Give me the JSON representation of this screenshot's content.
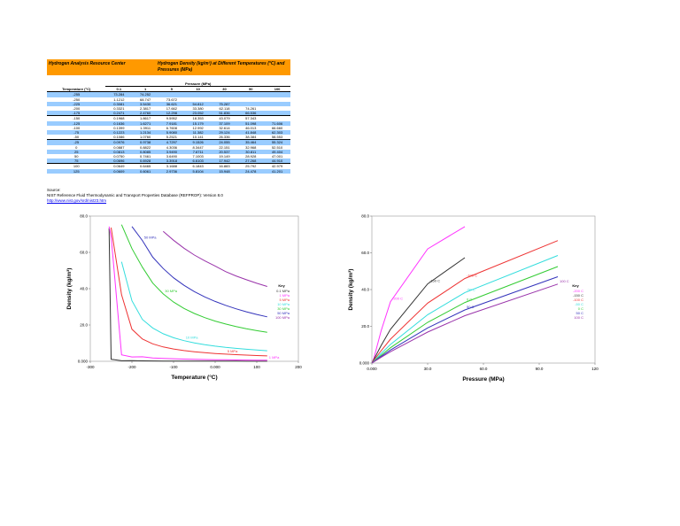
{
  "header": {
    "center": "Hydrogen Analysis Resource Center",
    "title": "Hydrogen Density (kg/m³) at Different Temperatures (°C) and Pressures (MPa)"
  },
  "table": {
    "pressure_header": "Pressure (MPa)",
    "temp_header": "Temperature (°C)",
    "pressures": [
      "0.1",
      "1",
      "5",
      "10",
      "30",
      "50",
      "100"
    ],
    "rows": [
      [
        "-255",
        "73.284",
        "74.252",
        "",
        "",
        "",
        "",
        ""
      ],
      [
        "-250",
        "1.1212",
        "68.747",
        "73.672",
        "",
        "",
        "",
        ""
      ],
      [
        "-225",
        "0.3081",
        "3.5430",
        "36.621",
        "54.812",
        "75.287",
        "",
        ""
      ],
      [
        "-200",
        "0.3321",
        "2.3817",
        "17.662",
        "33.380",
        "62.118",
        "74.261",
        ""
      ],
      [
        "-175",
        "0.2471",
        "2.4760",
        "12.298",
        "23.052",
        "51.836",
        "66.536",
        ""
      ],
      [
        "-150",
        "0.1968",
        "1.8617",
        "9.5952",
        "18.353",
        "43.079",
        "57.343",
        ""
      ],
      [
        "-125",
        "0.1636",
        "1.6271",
        "7.9181",
        "15.179",
        "37.109",
        "51.098",
        "71.606"
      ],
      [
        "-100",
        "0.1399",
        "1.3911",
        "6.7608",
        "12.992",
        "32.614",
        "46.013",
        "66.660"
      ],
      [
        "-75",
        "0.1223",
        "1.2134",
        "5.9080",
        "11.382",
        "29.124",
        "41.848",
        "62.303"
      ],
      [
        "-50",
        "0.1086",
        "1.0760",
        "5.2521",
        "10.141",
        "26.336",
        "38.384",
        "58.553"
      ],
      [
        "-25",
        "0.0976",
        "0.9738",
        "4.7297",
        "9.1526",
        "24.055",
        "35.464",
        "55.324"
      ],
      [
        "0",
        "0.0887",
        "0.8822",
        "4.3036",
        "8.3447",
        "22.151",
        "32.968",
        "52.510"
      ],
      [
        "25",
        "0.0813",
        "0.8085",
        "3.9490",
        "7.6711",
        "20.537",
        "30.811",
        "49.404"
      ],
      [
        "50",
        "0.0750",
        "0.7461",
        "3.6490",
        "7.1003",
        "19.149",
        "28.928",
        "47.001"
      ],
      [
        "75",
        "0.0696",
        "0.6928",
        "3.3918",
        "6.6103",
        "17.942",
        "27.268",
        "44.910"
      ],
      [
        "100",
        "0.0649",
        "0.6465",
        "3.1688",
        "6.1843",
        "16.883",
        "25.792",
        "42.979"
      ],
      [
        "125",
        "0.0609",
        "0.6061",
        "2.9736",
        "5.8104",
        "15.948",
        "24.478",
        "41.201"
      ]
    ]
  },
  "source": {
    "label": "Source:",
    "text": "NIST Reference Fluid Thermodynamic and Transport Properties Database (REFPROP): Version 8.0",
    "link": "http://www.nist.gov/srd/nist23.htm"
  },
  "chart_data": [
    {
      "type": "line",
      "xlabel": "Temperature (°C)",
      "ylabel": "Density (kg/m³)",
      "xlim": [
        -300,
        200
      ],
      "ylim": [
        0,
        80
      ],
      "xticks": [
        "-300",
        "-200",
        "-100",
        "0.000",
        "100",
        "200"
      ],
      "yticks": [
        "0.000",
        "20.0",
        "40.0",
        "60.0",
        "80.0"
      ],
      "legend_title": "Key",
      "legend_position": "right",
      "x": [
        -255,
        -250,
        -225,
        -200,
        -175,
        -150,
        -125,
        -100,
        -75,
        -50,
        -25,
        0,
        25,
        50,
        75,
        100,
        125
      ],
      "series": [
        {
          "name": "0.1 MPa",
          "color": "#333333",
          "values": [
            73.284,
            1.1212,
            0.3081,
            0.3321,
            0.2471,
            0.1968,
            0.1636,
            0.1399,
            0.1223,
            0.1086,
            0.0976,
            0.0887,
            0.0813,
            0.075,
            0.0696,
            0.0649,
            0.0609
          ]
        },
        {
          "name": "1 MPa",
          "label": "1 MPa",
          "color": "#ff33ff",
          "values": [
            74.252,
            68.747,
            3.543,
            2.3817,
            2.476,
            1.8617,
            1.6271,
            1.3911,
            1.2134,
            1.076,
            0.9738,
            0.8822,
            0.8085,
            0.7461,
            0.6928,
            0.6465,
            0.6061
          ]
        },
        {
          "name": "5 MPa",
          "label": "5 MPa",
          "color": "#ee3333",
          "values": [
            null,
            73.672,
            36.621,
            17.662,
            12.298,
            9.5952,
            7.9181,
            6.7608,
            5.908,
            5.2521,
            4.7297,
            4.3036,
            3.949,
            3.649,
            3.3918,
            3.1688,
            2.9736
          ]
        },
        {
          "name": "10 MPa",
          "label": "10 MPa",
          "color": "#33dddd",
          "values": [
            null,
            null,
            54.812,
            33.38,
            23.052,
            18.353,
            15.179,
            12.992,
            11.382,
            10.141,
            9.1526,
            8.3447,
            7.6711,
            7.1003,
            6.6103,
            6.1843,
            5.8104
          ]
        },
        {
          "name": "30 MPa",
          "label": "30 MPa",
          "color": "#33cc33",
          "values": [
            null,
            null,
            75.287,
            62.118,
            51.836,
            43.079,
            37.109,
            32.614,
            29.124,
            26.336,
            24.055,
            22.151,
            20.537,
            19.149,
            17.942,
            16.883,
            15.948
          ]
        },
        {
          "name": "50 MPa",
          "label": "50 MPa",
          "color": "#3333bb",
          "values": [
            null,
            null,
            null,
            74.261,
            66.536,
            57.343,
            51.098,
            46.013,
            41.848,
            38.384,
            35.464,
            32.968,
            30.811,
            28.928,
            27.268,
            25.792,
            24.478
          ]
        },
        {
          "name": "100 MPa",
          "label": "100 MPa",
          "color": "#9933aa",
          "values": [
            null,
            null,
            null,
            null,
            null,
            null,
            71.606,
            66.66,
            62.303,
            58.553,
            55.324,
            52.51,
            49.404,
            47.001,
            44.91,
            42.979,
            41.201
          ]
        }
      ]
    },
    {
      "type": "line",
      "xlabel": "Pressure (MPa)",
      "ylabel": "Density (kg/m³)",
      "xlim": [
        0,
        120
      ],
      "ylim": [
        0,
        80
      ],
      "xticks": [
        "0.000",
        "30.0",
        "60.0",
        "90.0",
        "120"
      ],
      "yticks": [
        "0.000",
        "20.0",
        "40.0",
        "60.0",
        "80.0"
      ],
      "legend_title": "Key",
      "legend_position": "right",
      "x": [
        0.1,
        1,
        5,
        10,
        30,
        50,
        100
      ],
      "series": [
        {
          "name": "-200 C",
          "label": "-200 C",
          "color": "#ff33ff",
          "values": [
            0.3321,
            2.3817,
            17.662,
            33.38,
            62.118,
            74.261,
            null
          ]
        },
        {
          "name": "-150 C",
          "label": "-150 C",
          "color": "#333333",
          "values": [
            0.1968,
            1.8617,
            9.5952,
            18.353,
            43.079,
            57.343,
            null
          ]
        },
        {
          "name": "-100 C",
          "label": "-100 C",
          "color": "#ee3333",
          "values": [
            0.1399,
            1.3911,
            6.7608,
            12.992,
            32.614,
            46.013,
            66.66
          ]
        },
        {
          "name": "-50 C",
          "label": "-50 C",
          "color": "#33dddd",
          "values": [
            0.1086,
            1.076,
            5.2521,
            10.141,
            26.336,
            38.384,
            58.553
          ]
        },
        {
          "name": "0 C",
          "label": "0 C",
          "color": "#33cc33",
          "values": [
            0.0887,
            0.8822,
            4.3036,
            8.3447,
            22.151,
            32.968,
            52.51
          ]
        },
        {
          "name": "50 C",
          "label": "50 C",
          "color": "#3333bb",
          "values": [
            0.075,
            0.7461,
            3.649,
            7.1003,
            19.149,
            28.928,
            47.001
          ]
        },
        {
          "name": "100 C",
          "label": "100 C",
          "color": "#9933aa",
          "values": [
            0.0649,
            0.6465,
            3.1688,
            6.1843,
            16.883,
            25.792,
            42.979
          ]
        }
      ]
    }
  ]
}
